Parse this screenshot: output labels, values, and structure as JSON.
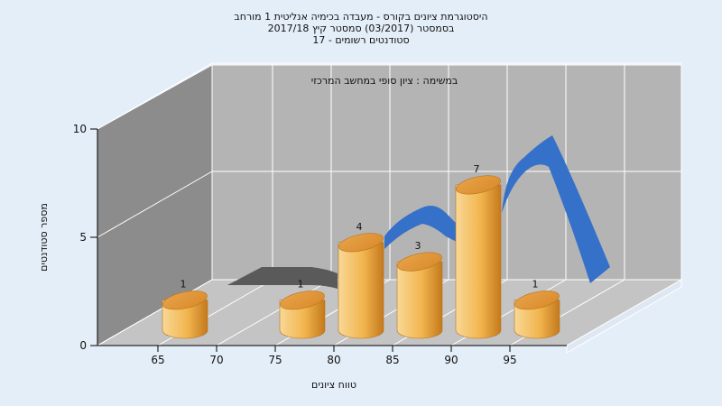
{
  "chart_data": {
    "type": "bar",
    "title_lines": [
      "היסטוגרמת ציונים בקורס - מעבדה בכימיה אנליטית 1 מורחב",
      "בסמסטר  (03/2017)  סמסטר קיץ  2017/18",
      "סטודנטים רשומים - 17"
    ],
    "annotation": "במשימה : ציון סופי במחשב המרכזי",
    "xlabel": "טווח ציונים",
    "ylabel": "מספר סטודנטים",
    "x_ticks": [
      "65",
      "70",
      "75",
      "80",
      "85",
      "90",
      "95"
    ],
    "y_ticks": [
      "0",
      "5",
      "10"
    ],
    "ylim": [
      0,
      10
    ],
    "categories": [
      "65",
      "75",
      "80",
      "85",
      "90",
      "95"
    ],
    "values": [
      1,
      1,
      4,
      3,
      7,
      1
    ],
    "labels": [
      "1",
      "1",
      "4",
      "3",
      "7",
      "1"
    ],
    "grid": true,
    "colors": {
      "background": "#e4eef8",
      "back_wall": "#b4b4b4",
      "left_wall": "#8c8c8c",
      "floor": "#c4c4c4",
      "bar_light": "#f8d590",
      "bar_mid": "#f0a63c",
      "bar_dark": "#c77a1c",
      "ribbon_blue": "#3571c8",
      "ribbon_gray": "#5a5a5a"
    }
  }
}
